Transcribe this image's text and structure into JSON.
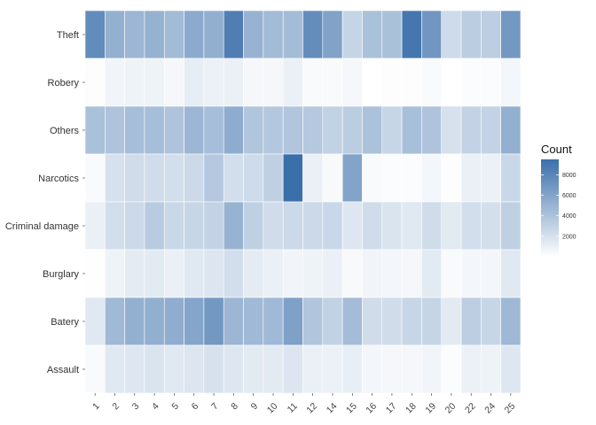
{
  "chart_data": {
    "type": "heatmap",
    "x_categories": [
      "1",
      "2",
      "3",
      "4",
      "5",
      "6",
      "7",
      "8",
      "9",
      "10",
      "11",
      "12",
      "14",
      "15",
      "16",
      "17",
      "18",
      "19",
      "20",
      "22",
      "24",
      "25"
    ],
    "y_categories": [
      "Theft",
      "Robery",
      "Others",
      "Narcotics",
      "Criminal damage",
      "Burglary",
      "Batery",
      "Assault"
    ],
    "values": [
      [
        7600,
        5200,
        4800,
        5100,
        4500,
        5600,
        5300,
        8500,
        5000,
        4500,
        4400,
        7500,
        6100,
        2800,
        4100,
        4100,
        9000,
        6900,
        2400,
        3300,
        3200,
        6800
      ],
      [
        120,
        700,
        800,
        800,
        500,
        1200,
        900,
        1000,
        500,
        500,
        1000,
        300,
        300,
        500,
        0,
        100,
        100,
        300,
        0,
        200,
        200,
        600
      ],
      [
        4100,
        3900,
        4300,
        4300,
        3900,
        4800,
        4300,
        5500,
        3800,
        3700,
        3800,
        3600,
        3000,
        3300,
        4000,
        2700,
        4200,
        3900,
        2000,
        2900,
        2900,
        5200
      ],
      [
        300,
        2000,
        2300,
        2300,
        2200,
        2500,
        3600,
        2200,
        2400,
        3100,
        9500,
        1000,
        400,
        6000,
        300,
        200,
        200,
        600,
        100,
        1000,
        900,
        2600
      ],
      [
        1000,
        2200,
        2500,
        3400,
        2600,
        2700,
        2900,
        5000,
        3100,
        2300,
        2500,
        2500,
        2600,
        1600,
        2300,
        1800,
        1500,
        2300,
        1400,
        2200,
        2100,
        3100
      ],
      [
        50,
        800,
        1300,
        1400,
        1000,
        1500,
        1700,
        2200,
        1300,
        1000,
        700,
        800,
        1000,
        400,
        700,
        600,
        500,
        1400,
        300,
        600,
        600,
        1500
      ],
      [
        1500,
        4600,
        5200,
        5300,
        5400,
        5900,
        6800,
        4800,
        4600,
        4600,
        6200,
        3800,
        3000,
        4400,
        2300,
        2300,
        2700,
        2800,
        1400,
        3200,
        2700,
        4700
      ],
      [
        300,
        1500,
        1600,
        1800,
        1500,
        1700,
        2000,
        1600,
        1400,
        1400,
        1700,
        1000,
        900,
        1100,
        600,
        500,
        500,
        700,
        200,
        900,
        800,
        1600
      ]
    ],
    "legend": {
      "title": "Count",
      "ticks": [
        2000,
        4000,
        6000,
        8000
      ],
      "range": [
        0,
        9500
      ],
      "color_low": "#ffffff",
      "color_high": "#3b6faa",
      "placement": "right"
    },
    "panel_color": "#ebebeb",
    "xlabel": "",
    "ylabel": ""
  }
}
